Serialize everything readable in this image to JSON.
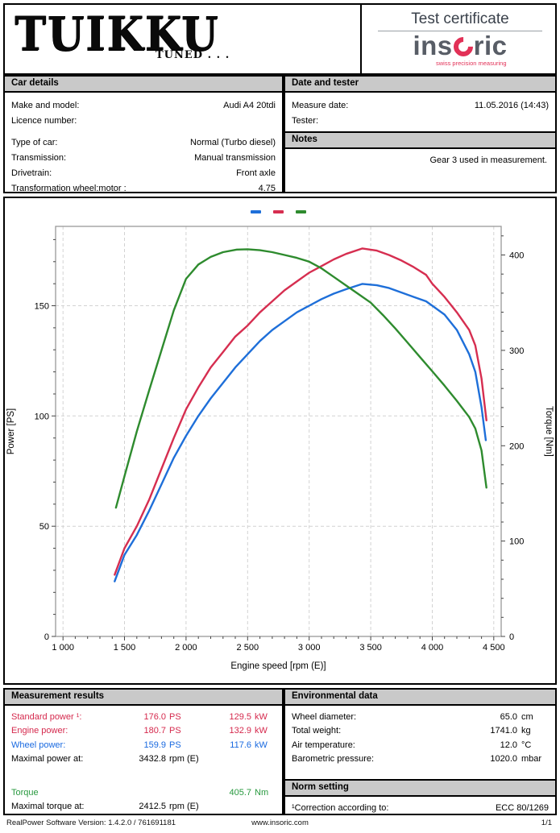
{
  "header": {
    "logo_text": "TUIKKU",
    "logo_sub": "TUNED . . .",
    "cert_title": "Test certificate",
    "brand_left": "ins",
    "brand_right": "ric",
    "brand_tagline": "swiss precision measuring",
    "brand_red": "#e23157",
    "brand_gray": "#585d66"
  },
  "car_details": {
    "title": "Car details",
    "rows": [
      {
        "label": "Make and model:",
        "value": "Audi A4 20tdi"
      },
      {
        "label": "Licence number:",
        "value": ""
      },
      {
        "label": "Type of car:",
        "value": "Normal (Turbo diesel)"
      },
      {
        "label": "Transmission:",
        "value": "Manual transmission"
      },
      {
        "label": "Drivetrain:",
        "value": "Front axle"
      },
      {
        "label": "Transformation wheel:motor :",
        "value": "4.75"
      }
    ]
  },
  "date_tester": {
    "title": "Date and tester",
    "rows": [
      {
        "label": "Measure date:",
        "value": "11.05.2016 (14:43)"
      },
      {
        "label": "Tester:",
        "value": ""
      }
    ]
  },
  "notes": {
    "title": "Notes",
    "text": "Gear 3 used in measurement."
  },
  "chart_data": {
    "type": "line",
    "xlabel": "Engine speed [rpm (E)]",
    "ylabel_left": "Power [PS]",
    "ylabel_right": "Torque [Nm]",
    "xlim": [
      940,
      4560
    ],
    "ylim_left": [
      0,
      186
    ],
    "ylim_right": [
      0,
      430
    ],
    "x_ticks": [
      1000,
      1500,
      2000,
      2500,
      3000,
      3500,
      4000,
      4500
    ],
    "x_tick_labels": [
      "1 000",
      "1 500",
      "2 000",
      "2 500",
      "3 000",
      "3 500",
      "4 000",
      "4 500"
    ],
    "x_minor_step": 100,
    "left_ticks": [
      0,
      50,
      100,
      150
    ],
    "left_minor_step": 10,
    "right_ticks": [
      0,
      100,
      200,
      300,
      400
    ],
    "right_minor_step": 20,
    "grid": true,
    "legend_position": "top-center",
    "legend": [
      {
        "name": "Wheel power",
        "color": "#1e6fd9"
      },
      {
        "name": "Engine power",
        "color": "#d62e50"
      },
      {
        "name": "Torque",
        "color": "#2e8b2e"
      }
    ],
    "series": [
      {
        "name": "Wheel power",
        "axis": "left",
        "color": "#1e6fd9",
        "points": [
          [
            1420,
            25
          ],
          [
            1500,
            37
          ],
          [
            1600,
            46
          ],
          [
            1700,
            57
          ],
          [
            1800,
            69
          ],
          [
            1900,
            81
          ],
          [
            2000,
            91
          ],
          [
            2100,
            100
          ],
          [
            2200,
            108
          ],
          [
            2300,
            115
          ],
          [
            2400,
            122
          ],
          [
            2500,
            128
          ],
          [
            2600,
            134
          ],
          [
            2700,
            139
          ],
          [
            2800,
            143
          ],
          [
            2900,
            147
          ],
          [
            3000,
            150
          ],
          [
            3100,
            153
          ],
          [
            3200,
            155.5
          ],
          [
            3300,
            157.5
          ],
          [
            3433,
            159.9
          ],
          [
            3550,
            159.3
          ],
          [
            3650,
            158
          ],
          [
            3750,
            156
          ],
          [
            3850,
            154
          ],
          [
            3950,
            152
          ],
          [
            4000,
            150
          ],
          [
            4100,
            146
          ],
          [
            4200,
            139
          ],
          [
            4300,
            128
          ],
          [
            4350,
            120
          ],
          [
            4400,
            104
          ],
          [
            4435,
            89
          ]
        ]
      },
      {
        "name": "Engine power",
        "axis": "left",
        "color": "#d62e50",
        "points": [
          [
            1420,
            28
          ],
          [
            1500,
            40
          ],
          [
            1600,
            50
          ],
          [
            1700,
            62
          ],
          [
            1800,
            76
          ],
          [
            1900,
            90
          ],
          [
            2000,
            103
          ],
          [
            2100,
            113
          ],
          [
            2200,
            122
          ],
          [
            2300,
            129
          ],
          [
            2400,
            136
          ],
          [
            2500,
            141
          ],
          [
            2600,
            147
          ],
          [
            2700,
            152
          ],
          [
            2800,
            157
          ],
          [
            2900,
            161
          ],
          [
            3000,
            165
          ],
          [
            3100,
            168
          ],
          [
            3200,
            171
          ],
          [
            3300,
            173.5
          ],
          [
            3433,
            176
          ],
          [
            3550,
            175
          ],
          [
            3650,
            173
          ],
          [
            3750,
            170.5
          ],
          [
            3850,
            167.5
          ],
          [
            3950,
            164
          ],
          [
            4000,
            160
          ],
          [
            4100,
            154
          ],
          [
            4200,
            147
          ],
          [
            4300,
            139
          ],
          [
            4350,
            132
          ],
          [
            4400,
            117
          ],
          [
            4440,
            98
          ]
        ]
      },
      {
        "name": "Torque",
        "axis": "right",
        "color": "#2e8b2e",
        "points": [
          [
            1430,
            135
          ],
          [
            1500,
            168
          ],
          [
            1600,
            215
          ],
          [
            1700,
            258
          ],
          [
            1800,
            300
          ],
          [
            1900,
            342
          ],
          [
            2000,
            375
          ],
          [
            2100,
            390
          ],
          [
            2200,
            398
          ],
          [
            2300,
            403
          ],
          [
            2412,
            405.7
          ],
          [
            2500,
            406
          ],
          [
            2600,
            405
          ],
          [
            2700,
            403
          ],
          [
            2800,
            400
          ],
          [
            2900,
            397
          ],
          [
            3000,
            393
          ],
          [
            3100,
            386
          ],
          [
            3200,
            377
          ],
          [
            3300,
            368
          ],
          [
            3400,
            359
          ],
          [
            3500,
            350
          ],
          [
            3600,
            337
          ],
          [
            3700,
            323
          ],
          [
            3800,
            308
          ],
          [
            3900,
            293
          ],
          [
            4000,
            278
          ],
          [
            4100,
            263
          ],
          [
            4200,
            247
          ],
          [
            4300,
            230
          ],
          [
            4350,
            218
          ],
          [
            4400,
            195
          ],
          [
            4440,
            156
          ]
        ]
      }
    ]
  },
  "measurement_results": {
    "title": "Measurement results",
    "rows": [
      {
        "label": "Standard power ¹:",
        "v1": "176.0",
        "u1": "PS",
        "v2": "129.5",
        "u2": "kW",
        "color": "red"
      },
      {
        "label": "Engine power:",
        "v1": "180.7",
        "u1": "PS",
        "v2": "132.9",
        "u2": "kW",
        "color": "red"
      },
      {
        "label": "Wheel power:",
        "v1": "159.9",
        "u1": "PS",
        "v2": "117.6",
        "u2": "kW",
        "color": "blue"
      },
      {
        "label": "Maximal power at:",
        "v1": "3432.8",
        "u1": "rpm (E)",
        "v2": "",
        "u2": "",
        "color": "black"
      },
      {
        "label": "Torque",
        "v1": "",
        "u1": "",
        "v2": "405.7",
        "u2": "Nm",
        "color": "green"
      },
      {
        "label": "Maximal torque at:",
        "v1": "2412.5",
        "u1": "rpm (E)",
        "v2": "",
        "u2": "",
        "color": "black"
      }
    ]
  },
  "environmental_data": {
    "title": "Environmental data",
    "rows": [
      {
        "label": "Wheel diameter:",
        "value": "65.0",
        "unit": "cm"
      },
      {
        "label": "Total weight:",
        "value": "1741.0",
        "unit": "kg"
      },
      {
        "label": "Air temperature:",
        "value": "12.0",
        "unit": "°C"
      },
      {
        "label": "Barometric pressure:",
        "value": "1020.0",
        "unit": "mbar"
      }
    ]
  },
  "norm_setting": {
    "title": "Norm setting",
    "rows": [
      {
        "label": "¹Correction according to:",
        "value": "ECC 80/1269"
      }
    ]
  },
  "footer": {
    "left": "RealPower Software Version: 1.4.2.0 / 761691181",
    "center": "www.insoric.com",
    "right": "1/1"
  },
  "colors": {
    "bar_gray": "#c9c9c9",
    "curve_blue": "#1e6fd9",
    "curve_red": "#d62e50",
    "curve_green": "#2e8b2e",
    "text_red": "#d5294d",
    "text_blue": "#1a6ae0",
    "text_green": "#28993f"
  }
}
